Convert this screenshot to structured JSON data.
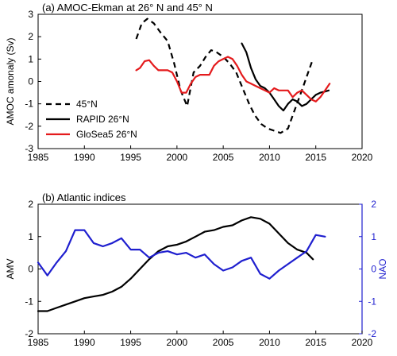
{
  "chart_data": [
    {
      "type": "line",
      "title": "(a) AMOC-Ekman at 26° N and 45° N",
      "xlabel": "",
      "ylabel": "AMOC amonaly (Sv)",
      "xlim": [
        1985,
        2020
      ],
      "ylim": [
        -3,
        3
      ],
      "xticks": [
        1985,
        1990,
        1995,
        2000,
        2005,
        2010,
        2015,
        2020
      ],
      "yticks": [
        -3,
        -2,
        -1,
        0,
        1,
        2,
        3
      ],
      "legend_position": "bottom-left",
      "series": [
        {
          "name": "45°N",
          "color": "#000000",
          "style": "dashed",
          "x": [
            1995.6,
            1996.2,
            1996.8,
            1997.5,
            1998.2,
            1999.0,
            1999.7,
            2000.4,
            2001.1,
            2001.8,
            2002.5,
            2003.1,
            2003.7,
            2004.3,
            2005.0,
            2005.7,
            2006.4,
            2007.1,
            2007.8,
            2008.4,
            2009.1,
            2009.8,
            2010.5,
            2011.2,
            2012.0,
            2012.7,
            2013.4,
            2014.0,
            2014.6
          ],
          "y": [
            1.9,
            2.6,
            2.8,
            2.6,
            2.2,
            1.8,
            0.8,
            -0.4,
            -1.1,
            0.4,
            0.7,
            1.1,
            1.4,
            1.3,
            1.1,
            0.8,
            0.4,
            -0.3,
            -1.0,
            -1.5,
            -1.9,
            -2.1,
            -2.2,
            -2.3,
            -2.1,
            -1.3,
            -0.5,
            0.2,
            0.9
          ]
        },
        {
          "name": "RAPID 26°N",
          "color": "#000000",
          "style": "solid",
          "x": [
            2007.0,
            2007.5,
            2008.0,
            2008.5,
            2009.0,
            2009.5,
            2010.0,
            2010.5,
            2011.0,
            2011.5,
            2012.0,
            2012.5,
            2013.0,
            2013.5,
            2014.0,
            2014.5,
            2015.0,
            2015.5,
            2016.0,
            2016.4
          ],
          "y": [
            1.7,
            1.3,
            0.6,
            0.1,
            -0.2,
            -0.3,
            -0.5,
            -0.8,
            -1.1,
            -1.3,
            -1.0,
            -0.8,
            -0.9,
            -1.1,
            -1.0,
            -0.8,
            -0.6,
            -0.5,
            -0.45,
            -0.4
          ]
        },
        {
          "name": "GloSea5 26°N",
          "color": "#e41a1c",
          "style": "solid",
          "x": [
            1995.6,
            1996.0,
            1996.5,
            1997.0,
            1997.5,
            1998.0,
            1998.5,
            1999.0,
            1999.5,
            2000.0,
            2000.5,
            2001.0,
            2001.5,
            2002.0,
            2002.5,
            2003.0,
            2003.5,
            2004.0,
            2004.5,
            2005.0,
            2005.5,
            2006.0,
            2006.5,
            2007.0,
            2007.5,
            2008.0,
            2008.5,
            2009.0,
            2009.5,
            2010.0,
            2010.5,
            2011.0,
            2011.5,
            2012.0,
            2012.5,
            2013.0,
            2013.5,
            2014.0,
            2014.5,
            2015.0,
            2015.5,
            2016.0,
            2016.5
          ],
          "y": [
            0.5,
            0.6,
            0.9,
            0.95,
            0.7,
            0.5,
            0.5,
            0.5,
            0.4,
            0.0,
            -0.5,
            -0.5,
            -0.1,
            0.2,
            0.3,
            0.3,
            0.3,
            0.7,
            0.9,
            1.0,
            1.1,
            1.0,
            0.7,
            0.3,
            0.0,
            -0.1,
            -0.2,
            -0.3,
            -0.4,
            -0.5,
            -0.3,
            -0.4,
            -0.4,
            -0.4,
            -0.7,
            -0.5,
            -0.4,
            -0.6,
            -0.8,
            -0.9,
            -0.7,
            -0.4,
            -0.1
          ]
        }
      ]
    },
    {
      "type": "line",
      "title": "(b) Atlantic indices",
      "xlabel": "",
      "ylabel": "AMV",
      "y2label": "NAO",
      "xlim": [
        1985,
        2020
      ],
      "ylim": [
        -2,
        2
      ],
      "y2lim": [
        -2,
        2
      ],
      "xticks": [
        1985,
        1990,
        1995,
        2000,
        2005,
        2010,
        2015,
        2020
      ],
      "yticks": [
        -2,
        -1,
        0,
        1,
        2
      ],
      "y2ticks": [
        -2,
        -1,
        0,
        1,
        2
      ],
      "series": [
        {
          "name": "AMV",
          "axis": "left",
          "color": "#000000",
          "x": [
            1985,
            1986,
            1987,
            1988,
            1989,
            1990,
            1991,
            1992,
            1993,
            1994,
            1995,
            1996,
            1997,
            1998,
            1999,
            2000,
            2001,
            2002,
            2003,
            2004,
            2005,
            2006,
            2007,
            2008,
            2009,
            2010,
            2011,
            2012,
            2013,
            2014,
            2014.7
          ],
          "y": [
            -1.3,
            -1.3,
            -1.2,
            -1.1,
            -1.0,
            -0.9,
            -0.85,
            -0.8,
            -0.7,
            -0.55,
            -0.3,
            0.0,
            0.3,
            0.55,
            0.7,
            0.75,
            0.85,
            1.0,
            1.15,
            1.2,
            1.3,
            1.35,
            1.5,
            1.6,
            1.55,
            1.4,
            1.1,
            0.8,
            0.6,
            0.5,
            0.3
          ]
        },
        {
          "name": "NAO",
          "axis": "right",
          "color": "#1f1fcf",
          "x": [
            1985,
            1986,
            1987,
            1988,
            1989,
            1990,
            1991,
            1992,
            1993,
            1994,
            1995,
            1996,
            1997,
            1998,
            1999,
            2000,
            2001,
            2002,
            2003,
            2004,
            2005,
            2006,
            2007,
            2008,
            2009,
            2010,
            2011,
            2012,
            2013,
            2014,
            2015,
            2016
          ],
          "y": [
            0.2,
            -0.2,
            0.2,
            0.55,
            1.2,
            1.2,
            0.8,
            0.7,
            0.8,
            0.95,
            0.6,
            0.6,
            0.35,
            0.5,
            0.55,
            0.45,
            0.5,
            0.35,
            0.45,
            0.15,
            -0.05,
            0.05,
            0.25,
            0.35,
            -0.15,
            -0.3,
            -0.05,
            0.15,
            0.35,
            0.55,
            1.05,
            1.0
          ]
        }
      ]
    }
  ]
}
